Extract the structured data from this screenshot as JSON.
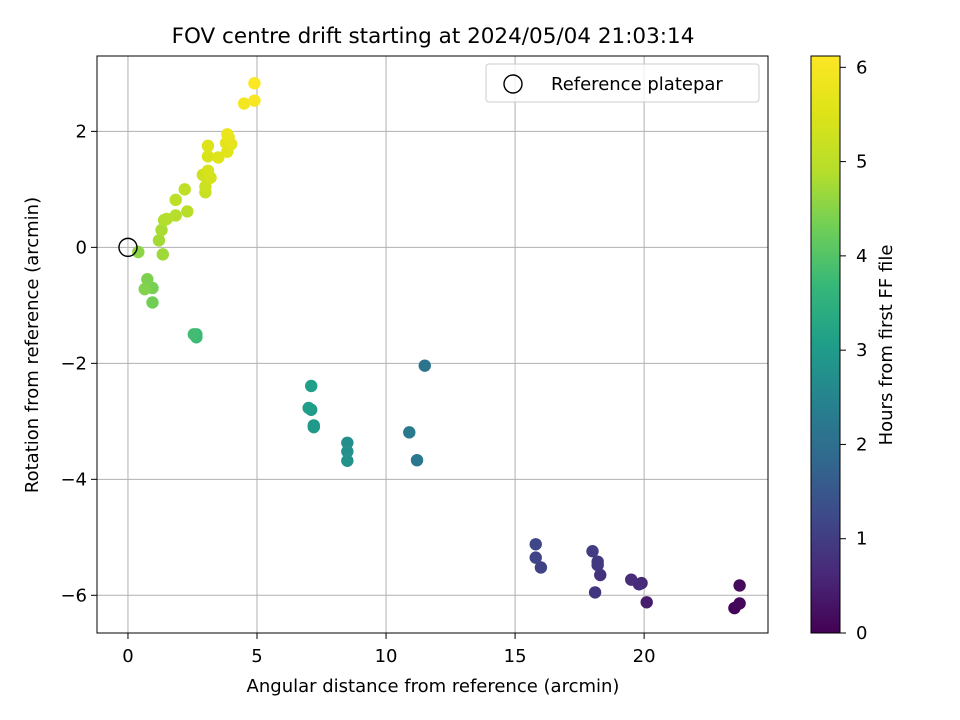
{
  "chart_data": {
    "type": "scatter",
    "title": "FOV centre drift starting at 2024/05/04 21:03:14",
    "xlabel": "Angular distance from reference (arcmin)",
    "ylabel": "Rotation from reference (arcmin)",
    "xlim": [
      -1.2,
      24.8
    ],
    "ylim": [
      -6.65,
      3.3
    ],
    "xticks": [
      0,
      5,
      10,
      15,
      20
    ],
    "xtick_labels": [
      "0",
      "5",
      "10",
      "15",
      "20"
    ],
    "yticks": [
      -6,
      -4,
      -2,
      0,
      2
    ],
    "ytick_labels": [
      "−6",
      "−4",
      "−2",
      "0",
      "2"
    ],
    "grid": true,
    "legend": {
      "placement": "top-right",
      "entries": [
        "Reference platepar"
      ]
    },
    "reference_point": {
      "x": 0,
      "y": 0,
      "label": "Reference platepar"
    },
    "colorbar": {
      "label": "Hours from first FF file",
      "colormap": "viridis",
      "range": [
        0,
        6.12
      ],
      "ticks": [
        0,
        1,
        2,
        3,
        4,
        5,
        6
      ],
      "tick_labels": [
        "0",
        "1",
        "2",
        "3",
        "4",
        "5",
        "6"
      ]
    },
    "series": [
      {
        "points": [
          {
            "x": 23.5,
            "y": -6.22,
            "t": 0.05
          },
          {
            "x": 23.7,
            "y": -6.14,
            "t": 0.1
          },
          {
            "x": 23.7,
            "y": -5.83,
            "t": 0.15
          },
          {
            "x": 20.1,
            "y": -6.12,
            "t": 0.45
          },
          {
            "x": 19.9,
            "y": -5.79,
            "t": 0.6
          },
          {
            "x": 19.8,
            "y": -5.81,
            "t": 0.65
          },
          {
            "x": 19.5,
            "y": -5.73,
            "t": 0.7
          },
          {
            "x": 18.3,
            "y": -5.65,
            "t": 0.8
          },
          {
            "x": 18.1,
            "y": -5.95,
            "t": 0.85
          },
          {
            "x": 18.2,
            "y": -5.48,
            "t": 0.9
          },
          {
            "x": 18.2,
            "y": -5.42,
            "t": 0.95
          },
          {
            "x": 18.0,
            "y": -5.24,
            "t": 1.0
          },
          {
            "x": 16.0,
            "y": -5.52,
            "t": 1.1
          },
          {
            "x": 15.8,
            "y": -5.35,
            "t": 1.15
          },
          {
            "x": 15.8,
            "y": -5.12,
            "t": 1.2
          },
          {
            "x": 11.5,
            "y": -2.04,
            "t": 2.1
          },
          {
            "x": 11.2,
            "y": -3.67,
            "t": 2.2
          },
          {
            "x": 10.9,
            "y": -3.19,
            "t": 2.25
          },
          {
            "x": 8.5,
            "y": -3.37,
            "t": 2.7
          },
          {
            "x": 8.5,
            "y": -3.52,
            "t": 2.75
          },
          {
            "x": 8.5,
            "y": -3.68,
            "t": 2.8
          },
          {
            "x": 7.2,
            "y": -3.07,
            "t": 2.9
          },
          {
            "x": 7.2,
            "y": -3.1,
            "t": 2.95
          },
          {
            "x": 7.1,
            "y": -2.8,
            "t": 3.0
          },
          {
            "x": 7.0,
            "y": -2.77,
            "t": 3.05
          },
          {
            "x": 7.1,
            "y": -2.39,
            "t": 3.1
          },
          {
            "x": 2.65,
            "y": -1.5,
            "t": 3.7
          },
          {
            "x": 2.65,
            "y": -1.55,
            "t": 3.75
          },
          {
            "x": 2.55,
            "y": -1.5,
            "t": 3.8
          },
          {
            "x": 0.95,
            "y": -0.95,
            "t": 4.3
          },
          {
            "x": 0.95,
            "y": -0.7,
            "t": 4.35
          },
          {
            "x": 0.75,
            "y": -0.55,
            "t": 4.4
          },
          {
            "x": 0.65,
            "y": -0.72,
            "t": 4.45
          },
          {
            "x": 0.4,
            "y": -0.08,
            "t": 4.55
          },
          {
            "x": 1.35,
            "y": -0.12,
            "t": 4.7
          },
          {
            "x": 1.2,
            "y": 0.12,
            "t": 4.75
          },
          {
            "x": 1.3,
            "y": 0.3,
            "t": 4.8
          },
          {
            "x": 1.4,
            "y": 0.47,
            "t": 4.85
          },
          {
            "x": 1.5,
            "y": 0.49,
            "t": 4.88
          },
          {
            "x": 1.85,
            "y": 0.55,
            "t": 4.92
          },
          {
            "x": 2.3,
            "y": 0.62,
            "t": 4.95
          },
          {
            "x": 1.85,
            "y": 0.82,
            "t": 5.0
          },
          {
            "x": 2.2,
            "y": 1.0,
            "t": 5.05
          },
          {
            "x": 3.0,
            "y": 0.95,
            "t": 5.2
          },
          {
            "x": 3.0,
            "y": 1.05,
            "t": 5.25
          },
          {
            "x": 2.9,
            "y": 1.25,
            "t": 5.3
          },
          {
            "x": 3.2,
            "y": 1.2,
            "t": 5.35
          },
          {
            "x": 3.1,
            "y": 1.32,
            "t": 5.4
          },
          {
            "x": 3.1,
            "y": 1.57,
            "t": 5.45
          },
          {
            "x": 3.1,
            "y": 1.75,
            "t": 5.5
          },
          {
            "x": 3.5,
            "y": 1.55,
            "t": 5.55
          },
          {
            "x": 3.85,
            "y": 1.65,
            "t": 5.6
          },
          {
            "x": 3.8,
            "y": 1.8,
            "t": 5.65
          },
          {
            "x": 4.0,
            "y": 1.78,
            "t": 5.68
          },
          {
            "x": 3.9,
            "y": 1.9,
            "t": 5.72
          },
          {
            "x": 3.85,
            "y": 1.95,
            "t": 5.75
          },
          {
            "x": 4.5,
            "y": 2.48,
            "t": 5.95
          },
          {
            "x": 4.9,
            "y": 2.53,
            "t": 6.0
          },
          {
            "x": 4.9,
            "y": 2.83,
            "t": 6.1
          }
        ]
      }
    ]
  }
}
